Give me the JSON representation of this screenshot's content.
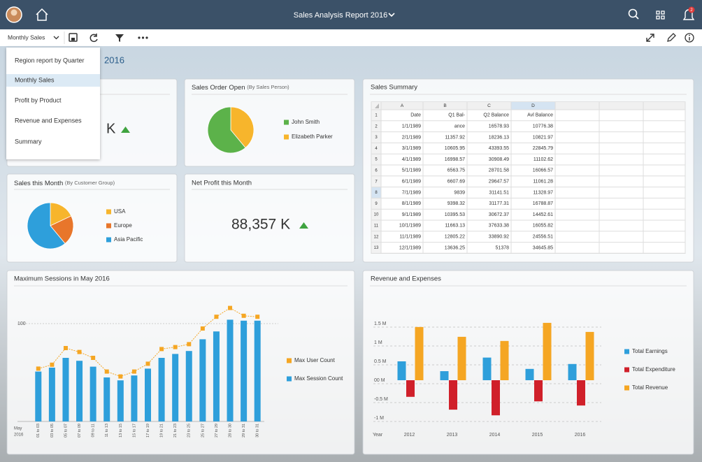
{
  "header": {
    "title": "Sales Analysis Report 2016",
    "notification_count": 2
  },
  "toolbar": {
    "view_select": "Monthly Sales"
  },
  "menu": {
    "items": [
      "Region report by Quarter",
      "Monthly Sales",
      "Profit by Product",
      "Revenue and Expenses",
      "Summary"
    ],
    "selected": 1
  },
  "page_title": "2016",
  "kpi_partial": {
    "value": "K"
  },
  "net_profit": {
    "title": "Net Profit this Month",
    "value": "88,357 K"
  },
  "table": {
    "title": "Sales Summary",
    "columns": [
      "A",
      "B",
      "C",
      "D"
    ],
    "row_numbers": [
      1,
      2,
      3,
      4,
      5,
      6,
      7,
      8,
      9,
      10,
      11,
      12,
      13
    ],
    "active_row": 7,
    "active_column": 3,
    "rows": [
      [
        "Date",
        "Q1 Bal-",
        "Q2 Balance",
        "Avl Balance"
      ],
      [
        "1/1/1989",
        "ance",
        "16578.93",
        "10776.38"
      ],
      [
        "2/1/1989",
        "11357.92",
        "18236.13",
        "10821.97"
      ],
      [
        "3/1/1989",
        "10605.95",
        "43393.55",
        "22845.79"
      ],
      [
        "4/1/1989",
        "16998.57",
        "30908.49",
        "11102.62"
      ],
      [
        "5/1/1989",
        "6563.75",
        "28701.58",
        "16066.57"
      ],
      [
        "6/1/1989",
        "6607.69",
        "29647.57",
        "11061.28"
      ],
      [
        "7/1/1989",
        "9839",
        "31141.51",
        "11328.97"
      ],
      [
        "8/1/1989",
        "9398.32",
        "31177.31",
        "16788.87"
      ],
      [
        "9/1/1989",
        "10395.53",
        "30672.37",
        "14452.61"
      ],
      [
        "10/1/1989",
        "11663.13",
        "37633.38",
        "16055.82"
      ],
      [
        "11/1/1989",
        "12805.22",
        "33890.92",
        "24556.51"
      ],
      [
        "12/1/1989",
        "13636.25",
        "51378",
        "34645.85"
      ]
    ]
  },
  "chart_data": [
    {
      "type": "pie",
      "title": "Sales Order Open",
      "subtitle": "(By Sales Person)",
      "categories": [
        "John Smith",
        "Elizabeth Parker"
      ],
      "values": [
        61,
        39
      ],
      "colors": [
        "#5cb24a",
        "#f7b52c"
      ],
      "start": 1
    },
    {
      "type": "pie",
      "title": "Sales this Month",
      "subtitle": "(By Customer Group)",
      "categories": [
        "USA",
        "Europe",
        "Asia Pacific"
      ],
      "values": [
        18,
        21,
        61
      ],
      "colors": [
        "#f7b52c",
        "#e8762b",
        "#2e9fdb"
      ],
      "start": 0
    },
    {
      "type": "combo",
      "title": "Maximum Sessions in May 2016",
      "x_note": [
        "May",
        "2016"
      ],
      "categories": [
        "01 to 03",
        "03 to 05",
        "05 to 07",
        "07 to 09",
        "09 to 11",
        "11 to 13",
        "13 to 15",
        "15 to 17",
        "17 to 19",
        "19 to 21",
        "21 to 23",
        "23 to 25",
        "25 to 27",
        "27 to 29",
        "28 to 30",
        "29 to 31",
        "30 to 31"
      ],
      "series": [
        {
          "name": "Max User Count",
          "color": "#f5a623",
          "mark": "line",
          "values": [
            54,
            58,
            75,
            71,
            65,
            51,
            46,
            51,
            59,
            74,
            76,
            79,
            95,
            107,
            116,
            108,
            107
          ]
        },
        {
          "name": "Max Session Count",
          "color": "#2e9fdb",
          "mark": "bar",
          "values": [
            51,
            55,
            65,
            62,
            56,
            45,
            42,
            47,
            54,
            65,
            69,
            72,
            84,
            92,
            104,
            103,
            103
          ]
        }
      ],
      "ylim": [
        0,
        120
      ],
      "yticks": [
        100
      ]
    },
    {
      "type": "bar",
      "title": "Revenue and Expenses",
      "x_label": "Year",
      "categories": [
        "2012",
        "2013",
        "2014",
        "2015",
        "2016"
      ],
      "series": [
        {
          "name": "Total Earnings",
          "color": "#2e9fdb",
          "values": [
            0.5,
            0.24,
            0.6,
            0.3,
            0.43
          ]
        },
        {
          "name": "Total Expenditure",
          "color": "#d0202a",
          "values": [
            -0.44,
            -0.78,
            -0.93,
            -0.56,
            -0.67
          ]
        },
        {
          "name": "Total Revenue",
          "color": "#f5a623",
          "values": [
            1.41,
            1.15,
            1.04,
            1.52,
            1.28
          ]
        }
      ],
      "ylim": [
        -1.2,
        1.7
      ],
      "yticks": [
        {
          "value": 1.5,
          "label": "1.5 M"
        },
        {
          "value": 1,
          "label": "1 M"
        },
        {
          "value": 0.5,
          "label": "0.5 M"
        },
        {
          "value": 0,
          "label": "00 M"
        },
        {
          "value": -0.5,
          "label": "-0.5 M"
        },
        {
          "value": -1,
          "label": "-1 M"
        }
      ]
    }
  ]
}
